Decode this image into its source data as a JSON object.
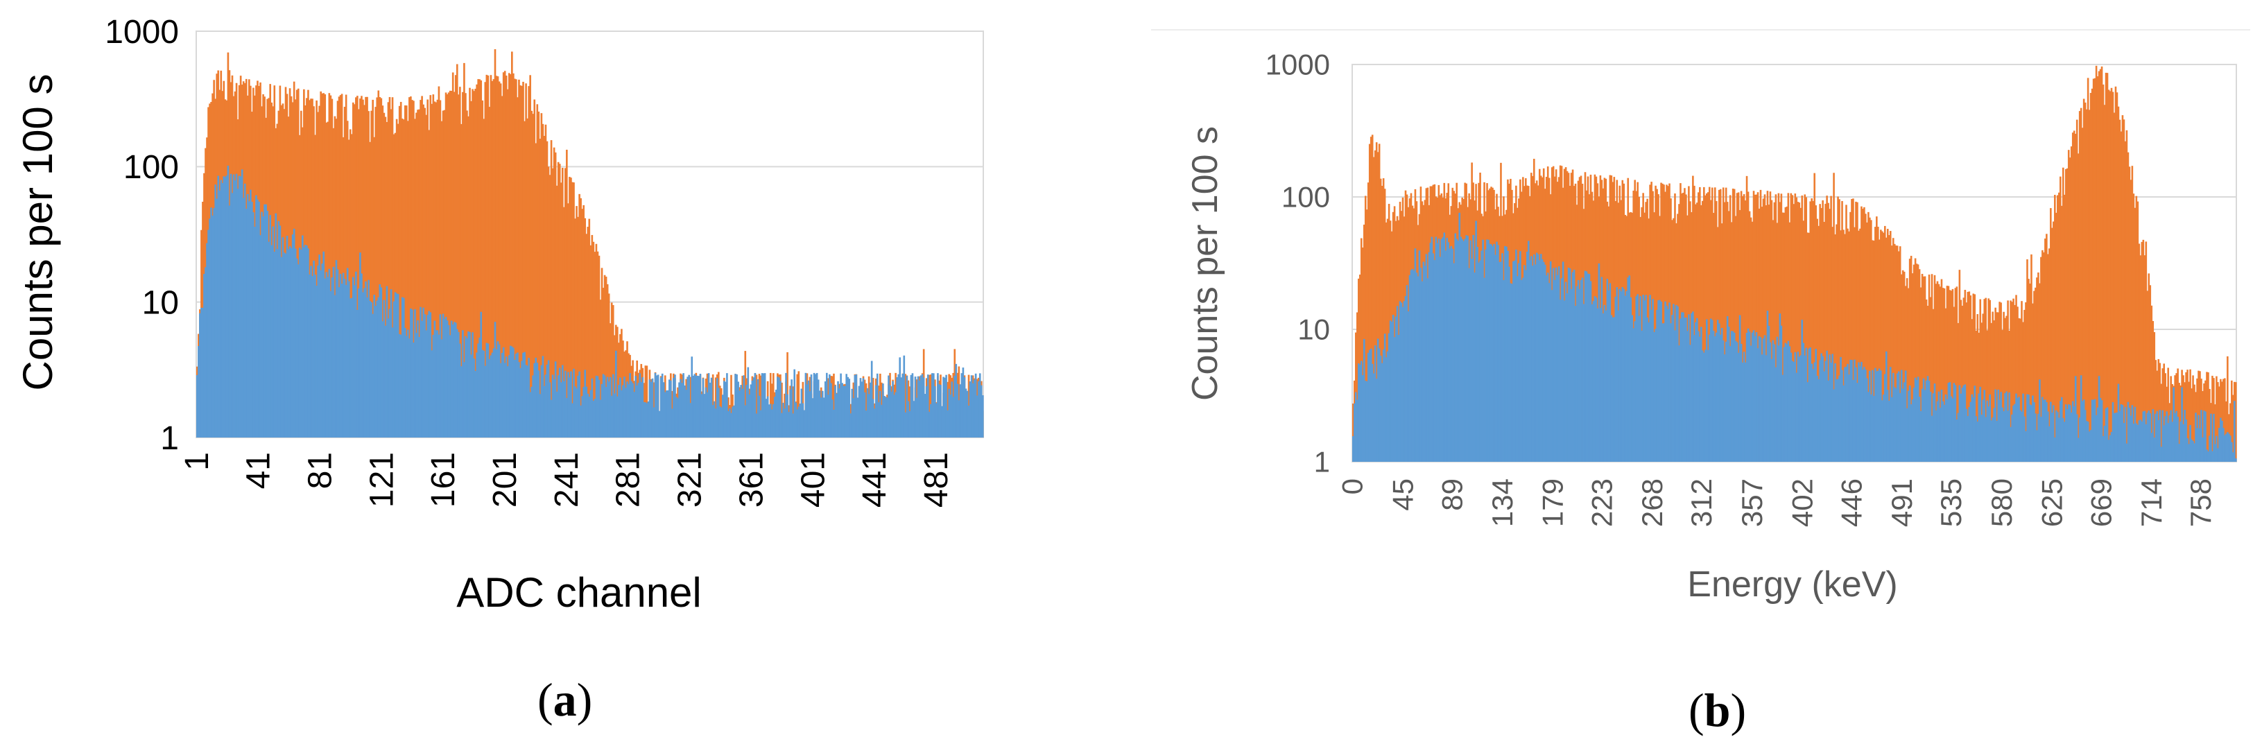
{
  "panel_labels": {
    "a": {
      "open": "(",
      "letter": "a",
      "close": ")"
    },
    "b": {
      "open": "(",
      "letter": "b",
      "close": ")"
    }
  },
  "colors": {
    "series_orange": "#ED7D31",
    "series_blue": "#5B9BD5",
    "axis_text_a": "#000000",
    "axis_text_b": "#595959",
    "gridline": "#D9D9D9",
    "plot_border_b": "#D9D9D9"
  },
  "chart_data": [
    {
      "type": "bar",
      "panel": "a",
      "xlabel": "ADC channel",
      "ylabel": "Counts per 100 s",
      "yscale": "log",
      "ylim": [
        1,
        1000
      ],
      "y_ticks": [
        "1",
        "10",
        "100",
        "1000"
      ],
      "x_range": [
        1,
        512
      ],
      "x_tick_labels": [
        "1",
        "41",
        "81",
        "121",
        "161",
        "201",
        "241",
        "281",
        "321",
        "361",
        "401",
        "441",
        "481"
      ],
      "grid": "horizontal",
      "series": [
        {
          "color": "#ED7D31",
          "envelope_x": [
            1,
            3,
            5,
            8,
            12,
            16,
            20,
            25,
            30,
            41,
            60,
            81,
            100,
            121,
            140,
            161,
            175,
            190,
            201,
            210,
            218,
            225,
            232,
            240,
            248,
            255,
            262,
            268,
            273,
            278,
            285,
            300,
            330,
            360,
            400,
            440,
            480,
            512
          ],
          "envelope_y": [
            3,
            12,
            70,
            250,
            500,
            560,
            540,
            500,
            470,
            430,
            390,
            360,
            340,
            330,
            330,
            350,
            400,
            480,
            520,
            480,
            380,
            250,
            160,
            100,
            70,
            45,
            25,
            14,
            9,
            6,
            4,
            3,
            3,
            3,
            3,
            3,
            3,
            3
          ],
          "noise_fraction": 0.55
        },
        {
          "color": "#5B9BD5",
          "envelope_x": [
            1,
            3,
            5,
            8,
            12,
            16,
            20,
            25,
            30,
            41,
            50,
            60,
            81,
            100,
            121,
            140,
            161,
            180,
            201,
            220,
            241,
            260,
            281,
            320,
            400,
            512
          ],
          "envelope_y": [
            3,
            8,
            12,
            30,
            70,
            100,
            110,
            95,
            85,
            60,
            48,
            38,
            25,
            18,
            14,
            10,
            8,
            6,
            5,
            4,
            3.5,
            3,
            3,
            3,
            3,
            3
          ],
          "noise_fraction": 0.5
        }
      ]
    },
    {
      "type": "bar",
      "panel": "b",
      "xlabel": "Energy (keV)",
      "ylabel": "Counts per 100 s",
      "yscale": "log",
      "ylim": [
        1,
        1000
      ],
      "y_ticks": [
        "1",
        "10",
        "100",
        "1000"
      ],
      "x_range": [
        0,
        790
      ],
      "x_tick_labels": [
        "0",
        "45",
        "89",
        "134",
        "179",
        "223",
        "268",
        "312",
        "357",
        "402",
        "446",
        "491",
        "535",
        "580",
        "625",
        "669",
        "714",
        "758"
      ],
      "grid": "horizontal",
      "series": [
        {
          "color": "#ED7D31",
          "envelope_x": [
            0,
            3,
            6,
            10,
            15,
            20,
            25,
            30,
            35,
            40,
            50,
            60,
            89,
            120,
            150,
            179,
            200,
            223,
            268,
            312,
            357,
            402,
            446,
            470,
            491,
            510,
            535,
            560,
            580,
            600,
            615,
            625,
            640,
            655,
            669,
            680,
            695,
            705,
            714,
            720,
            740,
            758,
            790
          ],
          "envelope_y": [
            2,
            10,
            30,
            80,
            250,
            400,
            250,
            100,
            80,
            90,
            110,
            120,
            130,
            130,
            140,
            180,
            160,
            150,
            130,
            120,
            115,
            105,
            100,
            70,
            45,
            30,
            22,
            18,
            16,
            20,
            40,
            90,
            250,
            600,
            1000,
            800,
            250,
            60,
            20,
            6,
            5,
            5,
            4
          ],
          "noise_fraction": 0.5
        },
        {
          "color": "#5B9BD5",
          "envelope_x": [
            0,
            3,
            6,
            10,
            20,
            30,
            40,
            50,
            60,
            70,
            80,
            89,
            134,
            179,
            223,
            268,
            312,
            357,
            402,
            446,
            491,
            535,
            580,
            625,
            669,
            714,
            758,
            790
          ],
          "envelope_y": [
            2,
            4,
            6,
            6,
            8,
            10,
            15,
            25,
            40,
            50,
            55,
            55,
            45,
            35,
            25,
            18,
            13,
            10,
            8,
            6,
            5,
            4,
            3.5,
            3,
            3,
            2.5,
            2.5,
            2
          ],
          "noise_fraction": 0.5
        }
      ]
    }
  ]
}
